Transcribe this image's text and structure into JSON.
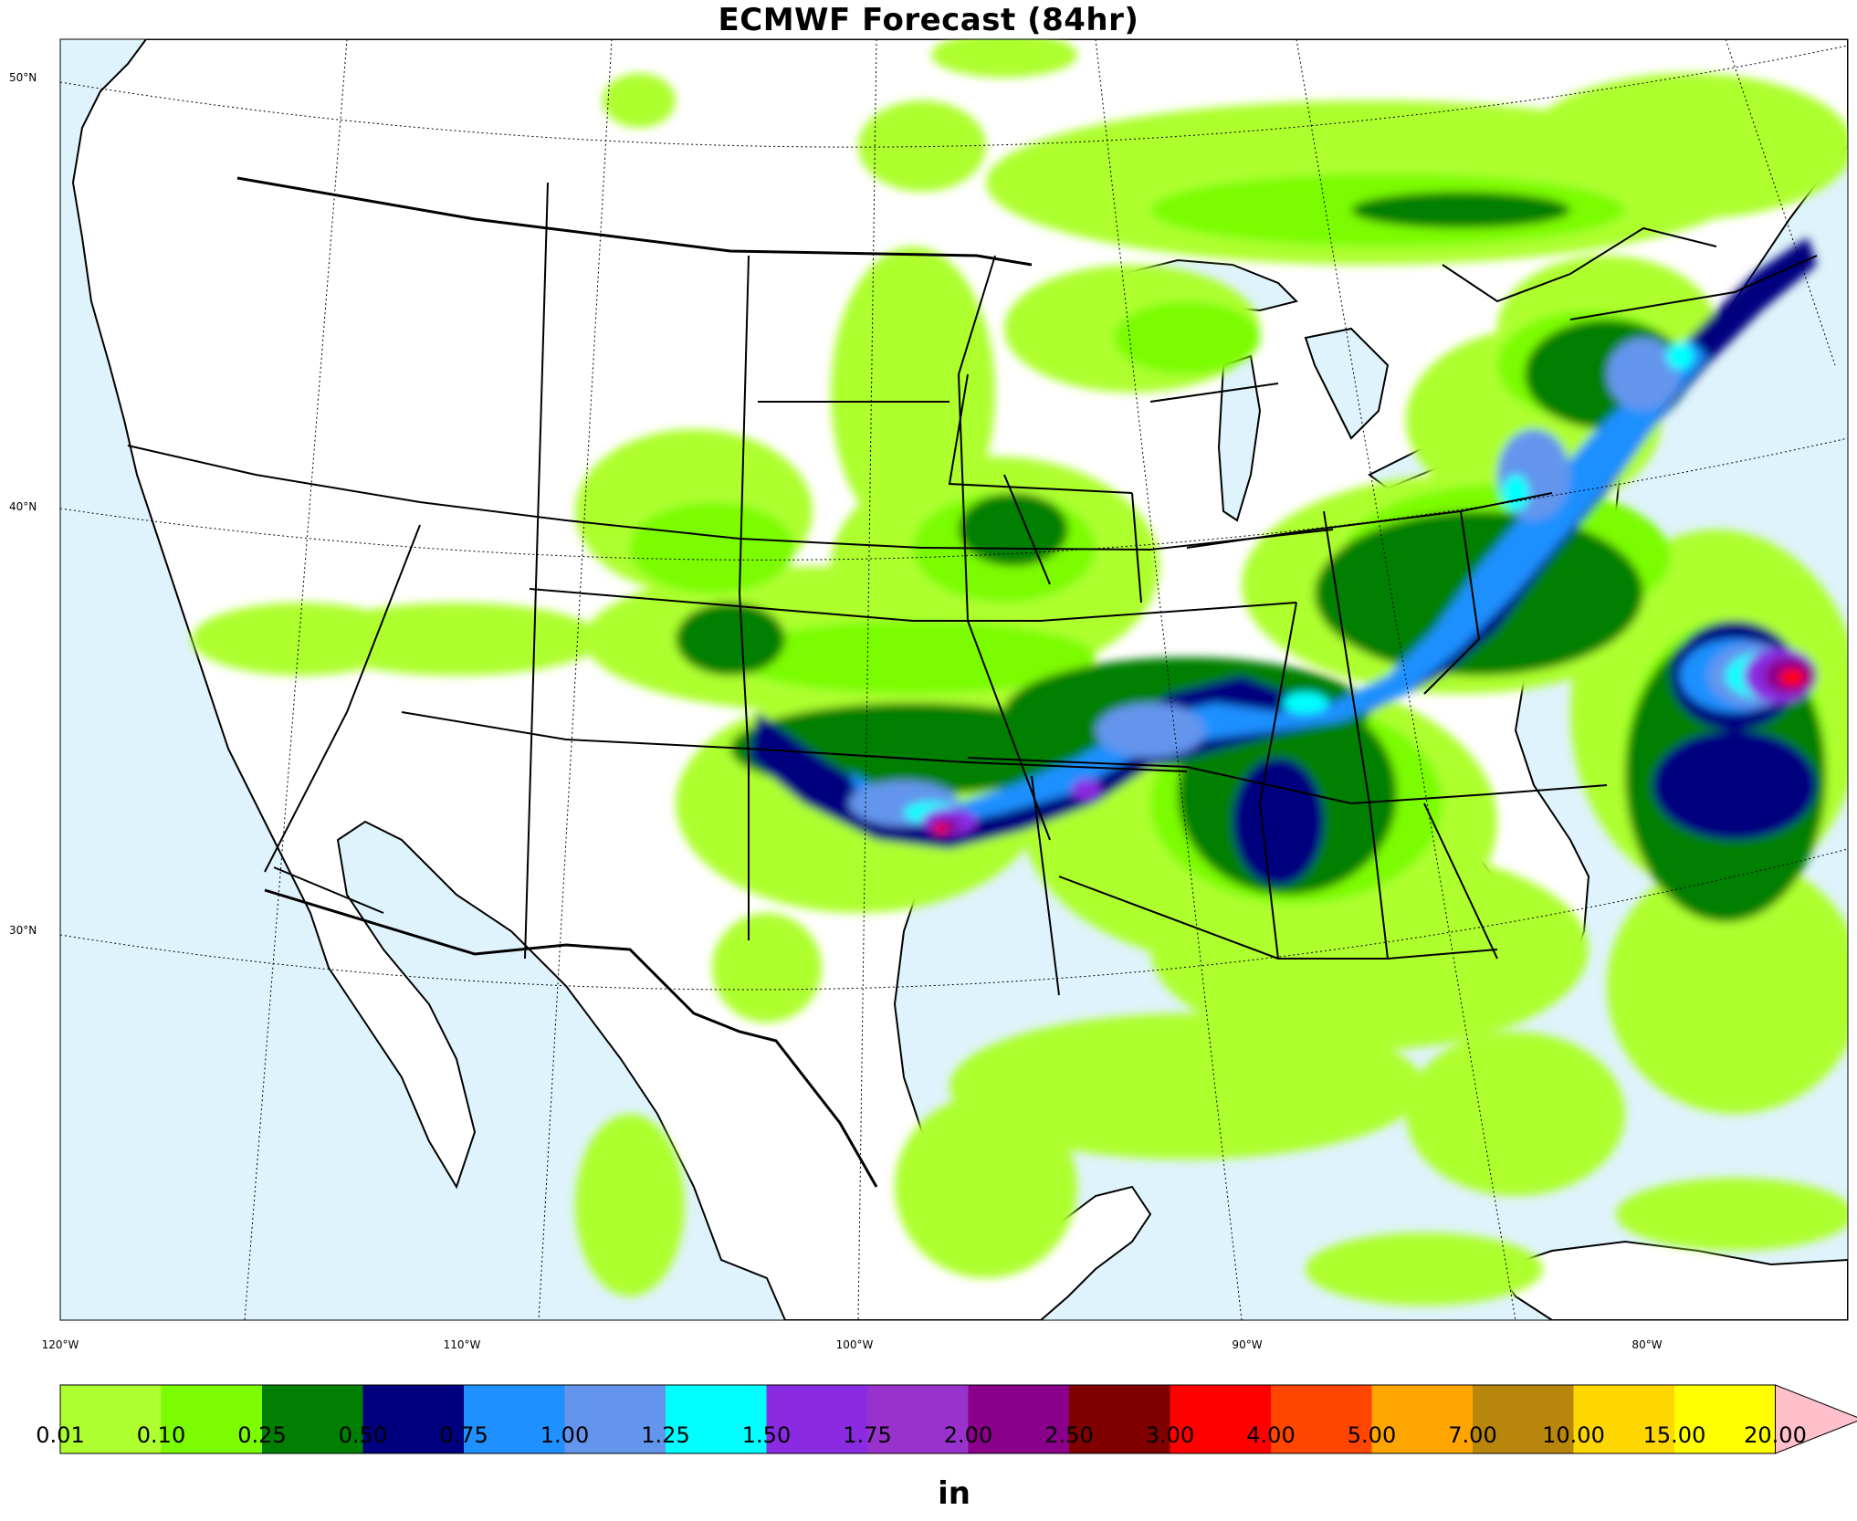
{
  "title": "ECMWF Forecast (84hr)",
  "units": "in",
  "lat_labels": [
    "50°N",
    "40°N",
    "30°N"
  ],
  "lon_labels": [
    "120°W",
    "110°W",
    "100°W",
    "90°W",
    "80°W"
  ],
  "colorbar": {
    "ticks": [
      "0.01",
      "0.10",
      "0.25",
      "0.50",
      "0.75",
      "1.00",
      "1.25",
      "1.50",
      "1.75",
      "2.00",
      "2.50",
      "3.00",
      "4.00",
      "5.00",
      "7.00",
      "10.00",
      "15.00",
      "20.00"
    ],
    "colors": [
      "#adff2f",
      "#7cfc00",
      "#007f00",
      "#00007f",
      "#1e90ff",
      "#6495ed",
      "#00ffff",
      "#8a2be2",
      "#9932cc",
      "#8b008b",
      "#800000",
      "#ff0000",
      "#ff4500",
      "#ffa500",
      "#b8860b",
      "#ffd700",
      "#ffff00"
    ],
    "extend_color": "#ffc0cb"
  },
  "colors": {
    "ocean": "#def3fb",
    "land": "#ffffff",
    "border": "#000000"
  }
}
